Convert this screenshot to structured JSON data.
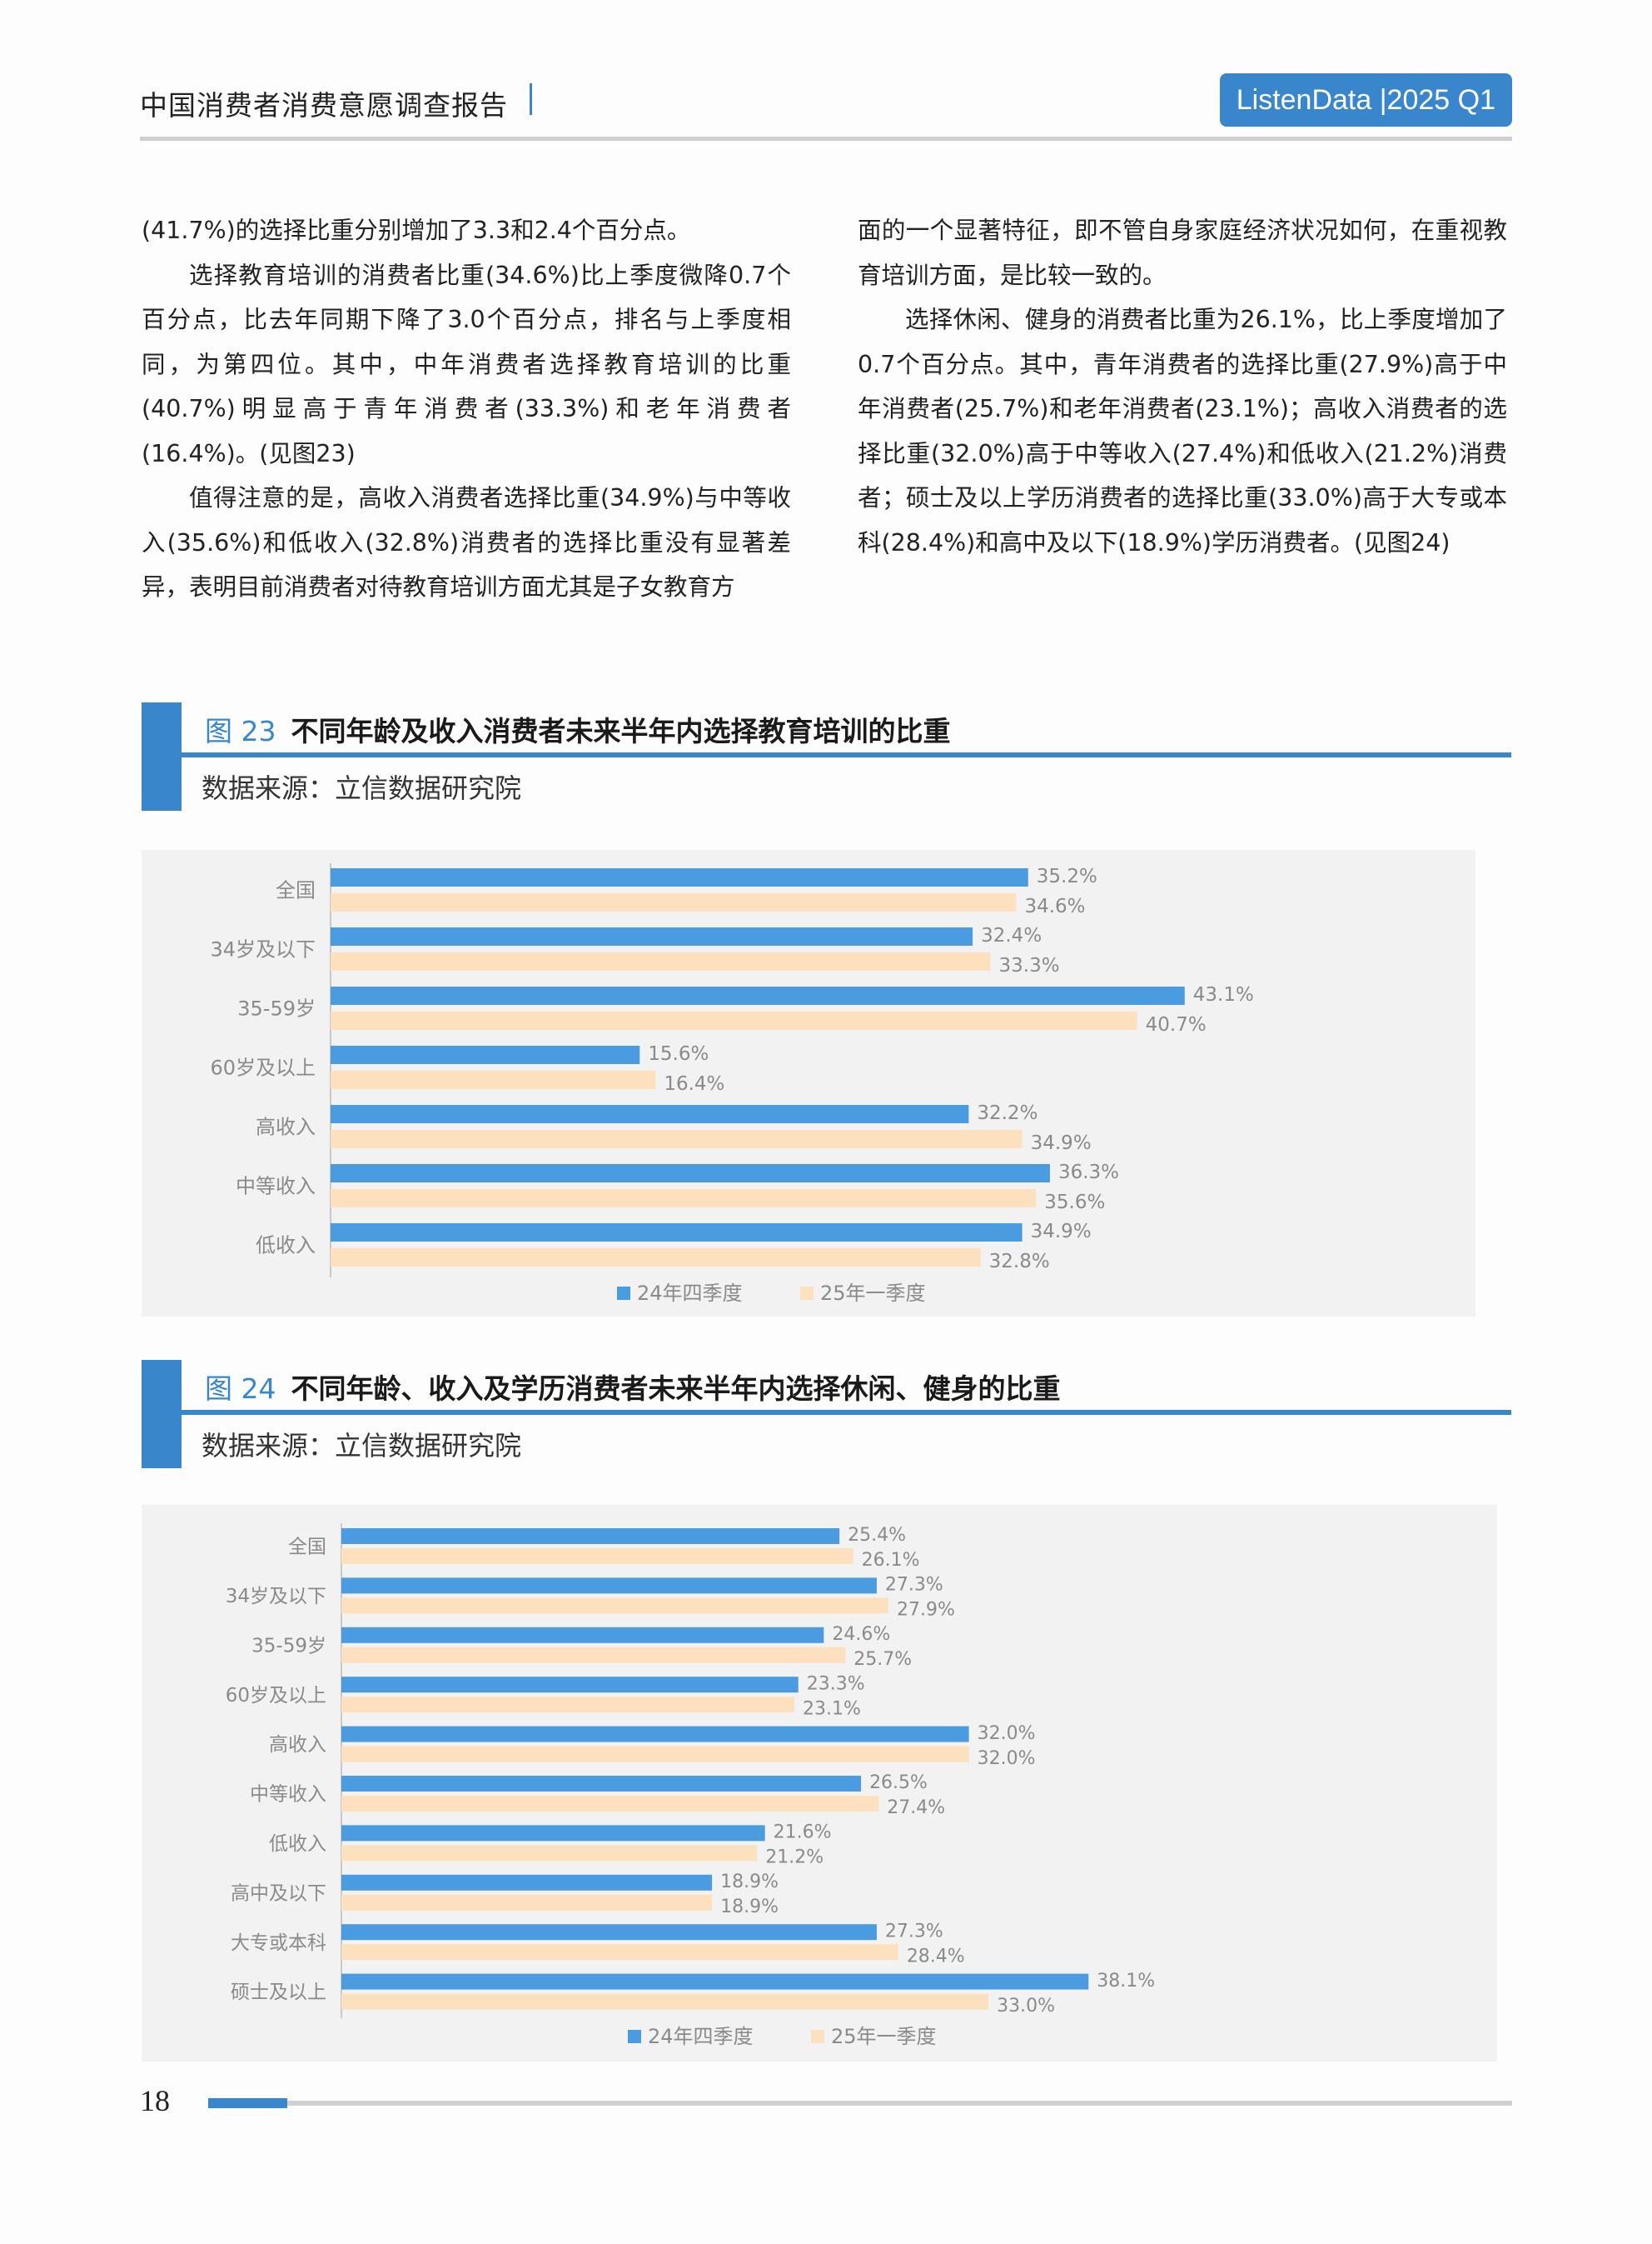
{
  "header": {
    "title": "中国消费者消费意愿调查报告",
    "badge": "ListenData |2025 Q1"
  },
  "body": {
    "left": [
      "(41.7%)的选择比重分别增加了3.3和2.4个百分点。",
      "选择教育培训的消费者比重(34.6%)比上季度微降0.7个百分点，比去年同期下降了3.0个百分点，排名与上季度相同，为第四位。其中，中年消费者选择教育培训的比重(40.7%)明显高于青年消费者(33.3%)和老年消费者(16.4%)。(见图23)",
      "值得注意的是，高收入消费者选择比重(34.9%)与中等收入(35.6%)和低收入(32.8%)消费者的选择比重没有显著差异，表明目前消费者对待教育培训方面尤其是子女教育方"
    ],
    "right": [
      "面的一个显著特征，即不管自身家庭经济状况如何，在重视教育培训方面，是比较一致的。",
      "选择休闲、健身的消费者比重为26.1%，比上季度增加了0.7个百分点。其中，青年消费者的选择比重(27.9%)高于中年消费者(25.7%)和老年消费者(23.1%)；高收入消费者的选择比重(32.0%)高于中等收入(27.4%)和低收入(21.2%)消费者；硕士及以上学历消费者的选择比重(33.0%)高于大专或本科(28.4%)和高中及以下(18.9%)学历消费者。(见图24)"
    ]
  },
  "figures": [
    {
      "num": "图 23",
      "title": "不同年龄及收入消费者未来半年内选择教育培训的比重",
      "source": "数据来源：立信数据研究院"
    },
    {
      "num": "图 24",
      "title": "不同年龄、收入及学历消费者未来半年内选择休闲、健身的比重",
      "source": "数据来源：立信数据研究院"
    }
  ],
  "chart_data": [
    {
      "type": "bar",
      "orientation": "horizontal",
      "categories": [
        "全国",
        "34岁及以下",
        "35-59岁",
        "60岁及以上",
        "高收入",
        "中等收入",
        "低收入"
      ],
      "series": [
        {
          "name": "24年四季度",
          "color": "#4a9be0",
          "values": [
            35.2,
            32.4,
            43.1,
            15.6,
            32.2,
            36.3,
            34.9
          ]
        },
        {
          "name": "25年一季度",
          "color": "#fde0bd",
          "values": [
            34.6,
            33.3,
            40.7,
            16.4,
            34.9,
            35.6,
            32.8
          ]
        }
      ],
      "value_suffix": "%",
      "xlim": [
        0,
        45
      ],
      "legend": "bottom",
      "grid": false
    },
    {
      "type": "bar",
      "orientation": "horizontal",
      "categories": [
        "全国",
        "34岁及以下",
        "35-59岁",
        "60岁及以上",
        "高收入",
        "中等收入",
        "低收入",
        "高中及以下",
        "大专或本科",
        "硕士及以上"
      ],
      "series": [
        {
          "name": "24年四季度",
          "color": "#4a9be0",
          "values": [
            25.4,
            27.3,
            24.6,
            23.3,
            32.0,
            26.5,
            21.6,
            18.9,
            27.3,
            38.1
          ]
        },
        {
          "name": "25年一季度",
          "color": "#fde0bd",
          "values": [
            26.1,
            27.9,
            25.7,
            23.1,
            32.0,
            27.4,
            21.2,
            18.9,
            28.4,
            33.0
          ]
        }
      ],
      "value_suffix": "%",
      "xlim": [
        0,
        40
      ],
      "legend": "bottom",
      "grid": false
    }
  ],
  "page_number": "18"
}
